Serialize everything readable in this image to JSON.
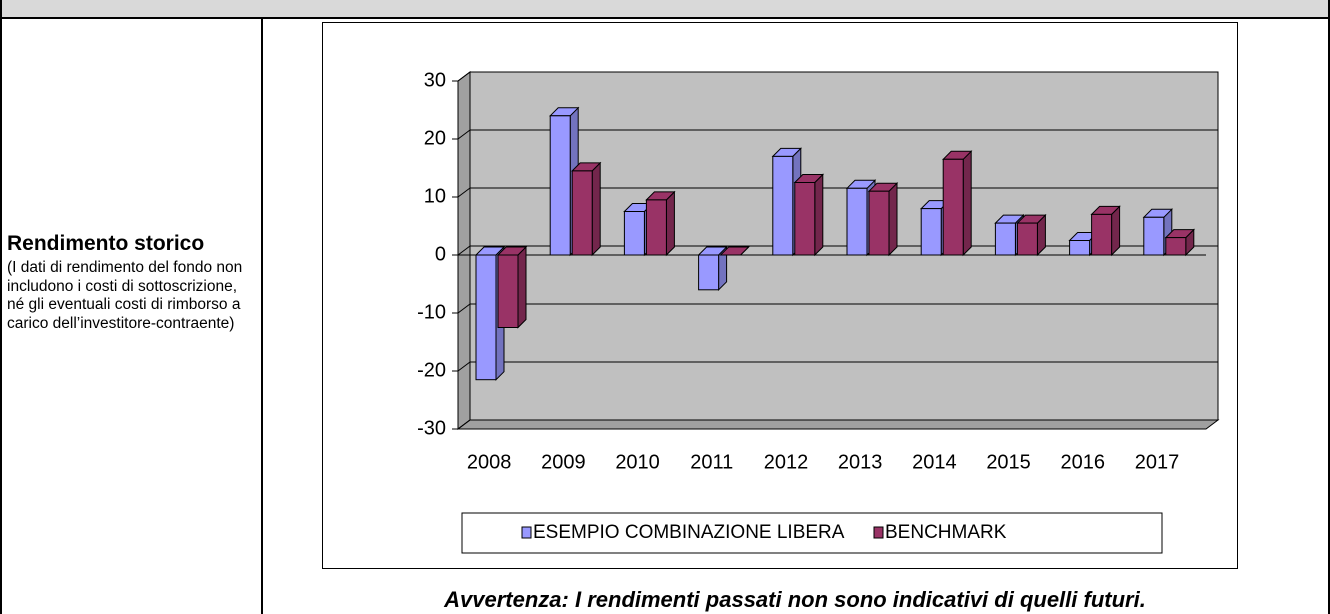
{
  "section": {
    "title": "Rendimento storico",
    "note": "(I dati di rendimento del fondo non includono i costi di sottoscrizione, né gli eventuali costi di rimborso a carico dell’investitore-contraente)"
  },
  "chart_data": {
    "type": "bar3d",
    "categories": [
      "2008",
      "2009",
      "2010",
      "2011",
      "2012",
      "2013",
      "2014",
      "2015",
      "2016",
      "2017"
    ],
    "series": [
      {
        "name": "ESEMPIO COMBINAZIONE LIBERA",
        "color": "#9999ff",
        "values": [
          -21.5,
          24,
          7.5,
          -6,
          17,
          11.5,
          8,
          5.5,
          2.5,
          6.5
        ]
      },
      {
        "name": "BENCHMARK",
        "color": "#993366",
        "values": [
          -12.5,
          14.5,
          9.5,
          0,
          12.5,
          11,
          16.5,
          5.5,
          7,
          3
        ]
      }
    ],
    "ylim": [
      -30,
      30
    ],
    "yticks": [
      -30,
      -20,
      -10,
      0,
      10,
      20,
      30
    ],
    "grid": true,
    "legend": "bottom"
  },
  "caption": "Avvertenza: I rendimenti passati non sono indicativi di quelli futuri."
}
